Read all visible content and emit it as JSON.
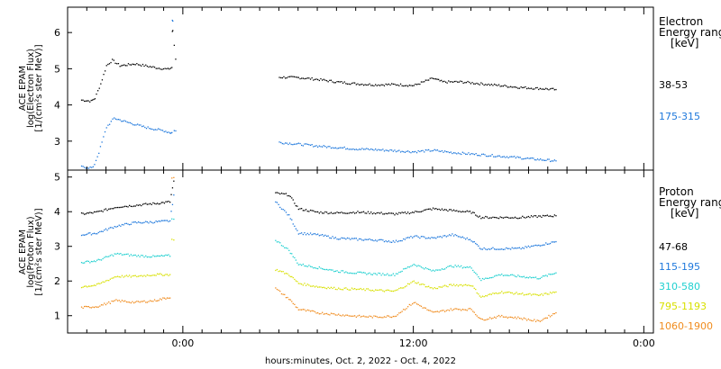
{
  "chart_data": [
    {
      "type": "scatter",
      "ylabel_lines": [
        "ACE EPAM",
        "log(Electron Flux)",
        "[1/(cm²s ster MeV)]"
      ],
      "yticks": [
        "3",
        "4",
        "5",
        "6"
      ],
      "ylim": [
        2.2,
        6.7
      ],
      "legend_title": [
        "Electron",
        "Energy range",
        "[keV]"
      ],
      "series": [
        {
          "name": "38-53",
          "color": "#000000",
          "segments": [
            [
              [
                -5.3,
                4.15
              ],
              [
                -4.8,
                4.12
              ],
              [
                -4.6,
                4.2
              ],
              [
                -4.3,
                4.6
              ],
              [
                -4.0,
                5.1
              ],
              [
                -3.7,
                5.25
              ],
              [
                -3.3,
                5.1
              ],
              [
                -2.5,
                5.15
              ],
              [
                -1.5,
                5.05
              ],
              [
                -0.8,
                5.0
              ],
              [
                -0.6,
                5.05
              ],
              [
                -0.55,
                6.05
              ],
              [
                -0.4,
                5.28
              ]
            ],
            [
              [
                5.0,
                4.78
              ],
              [
                6.0,
                4.77
              ],
              [
                7.0,
                4.72
              ],
              [
                8.0,
                4.65
              ],
              [
                9.0,
                4.6
              ],
              [
                10.0,
                4.57
              ],
              [
                11.0,
                4.58
              ],
              [
                12.0,
                4.55
              ],
              [
                13.0,
                4.75
              ],
              [
                13.5,
                4.65
              ],
              [
                14.5,
                4.65
              ],
              [
                15.5,
                4.6
              ],
              [
                16.5,
                4.55
              ],
              [
                17.5,
                4.5
              ],
              [
                18.5,
                4.47
              ],
              [
                19.4,
                4.44
              ]
            ]
          ]
        },
        {
          "name": "175-315",
          "color": "#1e78dc",
          "segments": [
            [
              [
                -5.3,
                2.3
              ],
              [
                -4.7,
                2.28
              ],
              [
                -4.4,
                2.7
              ],
              [
                -4.0,
                3.4
              ],
              [
                -3.6,
                3.65
              ],
              [
                -3.0,
                3.55
              ],
              [
                -2.0,
                3.4
              ],
              [
                -1.0,
                3.3
              ],
              [
                -0.7,
                3.25
              ],
              [
                -0.6,
                3.25
              ],
              [
                -0.55,
                6.35
              ],
              [
                -0.4,
                3.3
              ]
            ],
            [
              [
                5.0,
                2.98
              ],
              [
                6.0,
                2.93
              ],
              [
                7.0,
                2.88
              ],
              [
                8.0,
                2.84
              ],
              [
                9.0,
                2.8
              ],
              [
                10.0,
                2.78
              ],
              [
                11.0,
                2.75
              ],
              [
                12.0,
                2.72
              ],
              [
                13.0,
                2.76
              ],
              [
                14.0,
                2.7
              ],
              [
                15.0,
                2.66
              ],
              [
                16.0,
                2.62
              ],
              [
                17.0,
                2.58
              ],
              [
                18.0,
                2.53
              ],
              [
                19.4,
                2.47
              ]
            ]
          ]
        }
      ]
    },
    {
      "type": "scatter",
      "ylabel_lines": [
        "ACE EPAM",
        "log(Proton Flux)",
        "[1/(cm²s ster MeV)]"
      ],
      "yticks": [
        "1",
        "2",
        "3",
        "4",
        "5"
      ],
      "ylim": [
        0.5,
        5.2
      ],
      "legend_title": [
        "Proton",
        "Energy range",
        "[keV]"
      ],
      "series": [
        {
          "name": "47-68",
          "color": "#000000",
          "segments": [
            [
              [
                -5.3,
                3.95
              ],
              [
                -4.5,
                4.0
              ],
              [
                -3.5,
                4.15
              ],
              [
                -2.5,
                4.2
              ],
              [
                -1.5,
                4.25
              ],
              [
                -0.7,
                4.3
              ],
              [
                -0.5,
                4.9
              ]
            ],
            [
              [
                4.8,
                4.55
              ],
              [
                5.5,
                4.5
              ],
              [
                6.0,
                4.1
              ],
              [
                7.0,
                4.0
              ],
              [
                8.0,
                3.98
              ],
              [
                9.0,
                4.0
              ],
              [
                10.0,
                3.98
              ],
              [
                11.0,
                3.95
              ],
              [
                12.0,
                4.0
              ],
              [
                13.0,
                4.1
              ],
              [
                14.0,
                4.05
              ],
              [
                15.0,
                4.0
              ],
              [
                15.5,
                3.85
              ],
              [
                16.5,
                3.85
              ],
              [
                17.5,
                3.85
              ],
              [
                18.5,
                3.88
              ],
              [
                19.4,
                3.9
              ]
            ]
          ]
        },
        {
          "name": "115-195",
          "color": "#1e78dc",
          "segments": [
            [
              [
                -5.3,
                3.35
              ],
              [
                -4.5,
                3.4
              ],
              [
                -3.5,
                3.6
              ],
              [
                -2.5,
                3.7
              ],
              [
                -1.5,
                3.72
              ],
              [
                -0.7,
                3.75
              ],
              [
                -0.5,
                4.5
              ]
            ],
            [
              [
                4.8,
                4.3
              ],
              [
                5.5,
                3.9
              ],
              [
                6.0,
                3.4
              ],
              [
                7.0,
                3.35
              ],
              [
                8.0,
                3.25
              ],
              [
                9.0,
                3.22
              ],
              [
                10.0,
                3.2
              ],
              [
                11.0,
                3.15
              ],
              [
                12.0,
                3.3
              ],
              [
                13.0,
                3.25
              ],
              [
                14.0,
                3.35
              ],
              [
                15.0,
                3.2
              ],
              [
                15.5,
                2.95
              ],
              [
                16.5,
                2.95
              ],
              [
                17.5,
                2.95
              ],
              [
                18.5,
                3.05
              ],
              [
                19.4,
                3.15
              ]
            ]
          ]
        },
        {
          "name": "310-580",
          "color": "#20d0d0",
          "segments": [
            [
              [
                -5.3,
                2.55
              ],
              [
                -4.5,
                2.6
              ],
              [
                -3.5,
                2.8
              ],
              [
                -2.5,
                2.75
              ],
              [
                -1.5,
                2.72
              ],
              [
                -0.7,
                2.75
              ],
              [
                -0.5,
                3.8
              ]
            ],
            [
              [
                4.8,
                3.2
              ],
              [
                5.5,
                2.9
              ],
              [
                6.0,
                2.5
              ],
              [
                7.0,
                2.4
              ],
              [
                8.0,
                2.3
              ],
              [
                9.0,
                2.25
              ],
              [
                10.0,
                2.22
              ],
              [
                11.0,
                2.2
              ],
              [
                12.0,
                2.5
              ],
              [
                13.0,
                2.3
              ],
              [
                14.0,
                2.45
              ],
              [
                15.0,
                2.4
              ],
              [
                15.5,
                2.05
              ],
              [
                16.5,
                2.2
              ],
              [
                17.5,
                2.15
              ],
              [
                18.5,
                2.1
              ],
              [
                19.4,
                2.25
              ]
            ]
          ]
        },
        {
          "name": "795-1193",
          "color": "#d8e000",
          "segments": [
            [
              [
                -5.3,
                1.85
              ],
              [
                -4.5,
                1.9
              ],
              [
                -3.5,
                2.15
              ],
              [
                -2.5,
                2.15
              ],
              [
                -1.5,
                2.2
              ],
              [
                -0.7,
                2.2
              ],
              [
                -0.5,
                3.2
              ]
            ],
            [
              [
                4.8,
                2.35
              ],
              [
                5.5,
                2.2
              ],
              [
                6.0,
                1.95
              ],
              [
                7.0,
                1.85
              ],
              [
                8.0,
                1.8
              ],
              [
                9.0,
                1.78
              ],
              [
                10.0,
                1.75
              ],
              [
                11.0,
                1.72
              ],
              [
                12.0,
                2.0
              ],
              [
                13.0,
                1.8
              ],
              [
                14.0,
                1.9
              ],
              [
                15.0,
                1.9
              ],
              [
                15.5,
                1.55
              ],
              [
                16.5,
                1.7
              ],
              [
                17.5,
                1.65
              ],
              [
                18.5,
                1.6
              ],
              [
                19.4,
                1.7
              ]
            ]
          ]
        },
        {
          "name": "1060-1900",
          "color": "#f08c1e",
          "segments": [
            [
              [
                -5.3,
                1.25
              ],
              [
                -4.5,
                1.28
              ],
              [
                -3.5,
                1.45
              ],
              [
                -2.5,
                1.4
              ],
              [
                -1.5,
                1.45
              ],
              [
                -0.7,
                1.55
              ],
              [
                -0.5,
                5.0
              ]
            ],
            [
              [
                4.8,
                1.8
              ],
              [
                5.5,
                1.5
              ],
              [
                6.0,
                1.2
              ],
              [
                7.0,
                1.1
              ],
              [
                8.0,
                1.05
              ],
              [
                9.0,
                1.0
              ],
              [
                10.0,
                0.98
              ],
              [
                11.0,
                1.0
              ],
              [
                12.0,
                1.4
              ],
              [
                13.0,
                1.1
              ],
              [
                14.0,
                1.2
              ],
              [
                15.0,
                1.2
              ],
              [
                15.5,
                0.9
              ],
              [
                16.5,
                1.0
              ],
              [
                17.5,
                0.95
              ],
              [
                18.5,
                0.85
              ],
              [
                19.4,
                1.1
              ]
            ]
          ]
        }
      ]
    }
  ],
  "xaxis": {
    "range_hours": [
      -6.0,
      24.5
    ],
    "tick_labels": [
      {
        "hour": 0,
        "label": "0:00"
      },
      {
        "hour": 12,
        "label": "12:00"
      },
      {
        "hour": 24,
        "label": "0:00"
      }
    ],
    "xlabel": "hours:minutes, Oct.  2, 2022 - Oct.  4, 2022"
  }
}
